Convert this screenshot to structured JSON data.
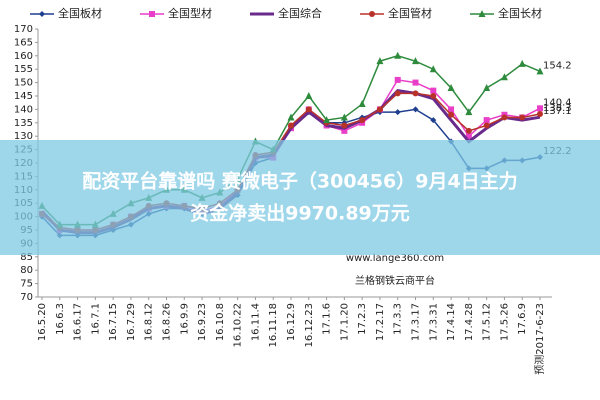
{
  "chart_data": {
    "type": "line",
    "categories": [
      "16.5.20",
      "16.6.3",
      "16.6.17",
      "16.7.1",
      "16.7.15",
      "16.7.29",
      "16.8.12",
      "16.8.26",
      "16.9.9",
      "16.9.23",
      "16.10.8",
      "16.10.22",
      "16.11.4",
      "16.11.18",
      "16.12.9",
      "16.12.23",
      "17.1.6",
      "17.1.20",
      "17.2.3",
      "17.2.17",
      "17.3.3",
      "17.3.17",
      "17.3.31",
      "17.4.14",
      "17.4.28",
      "17.5.12",
      "17.5.26",
      "17.6.9",
      "预测2017-6-23"
    ],
    "series": [
      {
        "name": "全国板材",
        "color": "#1f3f8f",
        "marker": "diamond",
        "values": [
          100,
          93,
          93,
          93,
          95,
          97,
          101,
          103,
          103,
          101,
          103,
          108,
          120,
          122,
          134,
          139,
          135,
          135,
          137,
          139,
          139,
          140,
          136,
          128,
          118,
          118,
          121,
          121,
          122.2
        ]
      },
      {
        "name": "全国型材",
        "color": "#e83ec8",
        "marker": "square",
        "values": [
          101,
          95,
          95,
          95,
          97,
          100,
          103,
          104,
          104,
          102,
          104,
          110,
          122,
          122,
          133,
          140,
          134,
          132,
          135,
          140,
          151,
          150,
          147,
          140,
          130,
          136,
          138,
          137,
          140.4
        ]
      },
      {
        "name": "全国综合",
        "color": "#6a2a8c",
        "marker": "none",
        "values": [
          102,
          95,
          94,
          94,
          96,
          99,
          103,
          104,
          103,
          101,
          103,
          109,
          122,
          123,
          133,
          139,
          134,
          133,
          136,
          140,
          147,
          146,
          144,
          136,
          128,
          133,
          137,
          136,
          137.1
        ]
      },
      {
        "name": "全国管材",
        "color": "#b8322a",
        "marker": "circle",
        "values": [
          101,
          96,
          95,
          95,
          97,
          100,
          104,
          105,
          104,
          103,
          105,
          110,
          123,
          124,
          134,
          140,
          135,
          134,
          136,
          140,
          146,
          146,
          145,
          138,
          132,
          134,
          137,
          137,
          138.3
        ]
      },
      {
        "name": "全国长材",
        "color": "#2e8b3e",
        "marker": "triangle",
        "values": [
          104,
          97,
          97,
          97,
          101,
          105,
          107,
          110,
          110,
          107,
          109,
          114,
          128,
          125,
          137,
          145,
          136,
          137,
          142,
          158,
          160,
          158,
          155,
          148,
          139,
          148,
          152,
          157,
          154.2
        ]
      }
    ],
    "ylim": [
      70,
      170
    ],
    "yticks": [
      70,
      75,
      80,
      85,
      90,
      95,
      100,
      105,
      110,
      115,
      120,
      125,
      130,
      135,
      140,
      145,
      150,
      155,
      160,
      165,
      170
    ],
    "watermark": [
      "www.lange360.com",
      "兰格钢铁云商平台"
    ],
    "banner": [
      "配资平台靠谱吗 赛微电子（300456）9月4日主力",
      "资金净卖出9970.89万元"
    ]
  }
}
